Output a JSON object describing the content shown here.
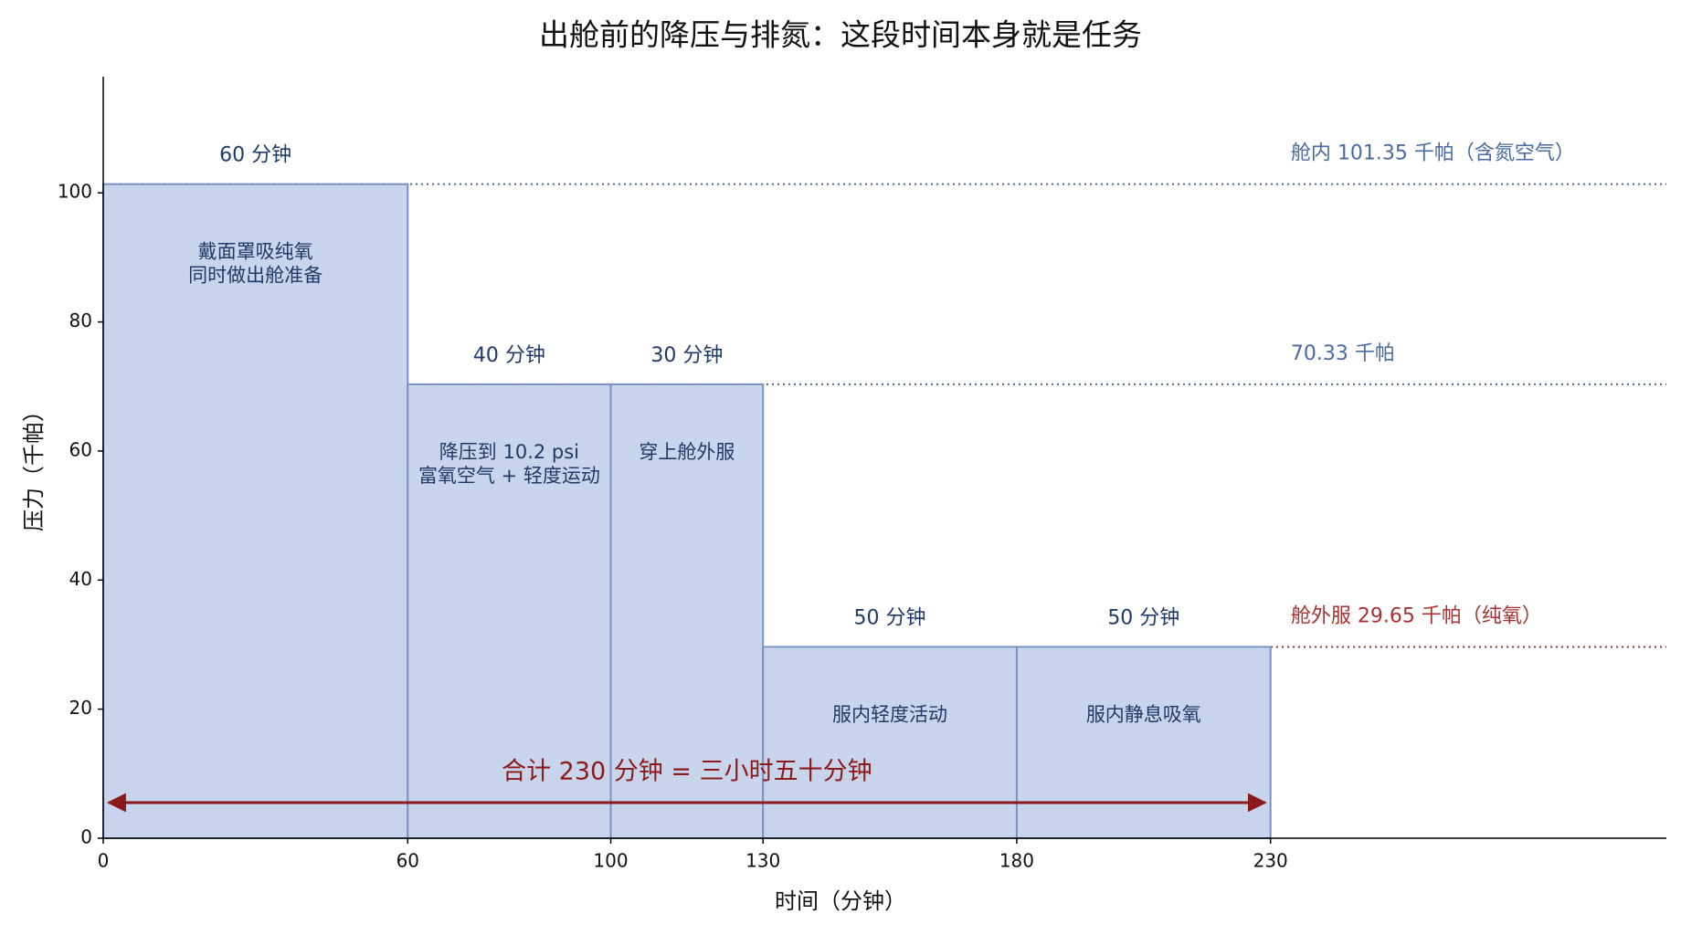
{
  "chart_data": {
    "type": "step-bar",
    "title": "出舱前的降压与排氮：这段时间本身就是任务",
    "x_label": "时间（分钟）",
    "y_label": "压力（千帕）",
    "bins": [
      0,
      60,
      100,
      130,
      180,
      230
    ],
    "values": [
      101.35,
      70.33,
      70.33,
      29.65,
      29.65
    ],
    "duration_labels": [
      "60 分钟",
      "40 分钟",
      "30 分钟",
      "50 分钟",
      "50 分钟"
    ],
    "labels": [
      [
        "戴面罩吸纯氧",
        "同时做出舱准备"
      ],
      [
        "降压到 10.2 psi",
        "富氧空气 + 轻度运动"
      ],
      [
        "穿上舱外服"
      ],
      [
        "服内轻度活动"
      ],
      [
        "服内静息吸氧"
      ]
    ],
    "color": "#c9d5ec",
    "edge_color": "#7a92c0",
    "reference_lines": [
      {
        "value": 101.35,
        "label": "舱内 101.35 千帕（含氮空气）",
        "color": "#4a6aa0"
      },
      {
        "value": 70.33,
        "label": "70.33 千帕",
        "color": "#4a6aa0"
      },
      {
        "value": 29.65,
        "label": "舱外服 29.65 千帕（纯氧）",
        "color": "#a83232"
      }
    ],
    "total_annotation": {
      "text": "合计 230 分钟 = 三小时五十分钟",
      "from": 0,
      "to": 230,
      "color": "#8b1a1a"
    },
    "xlim": [
      0,
      308
    ],
    "ylim": [
      0,
      118
    ],
    "xticks": [
      0,
      60,
      100,
      130,
      180,
      230
    ],
    "yticks": [
      0,
      20,
      40,
      60,
      80,
      100
    ]
  }
}
